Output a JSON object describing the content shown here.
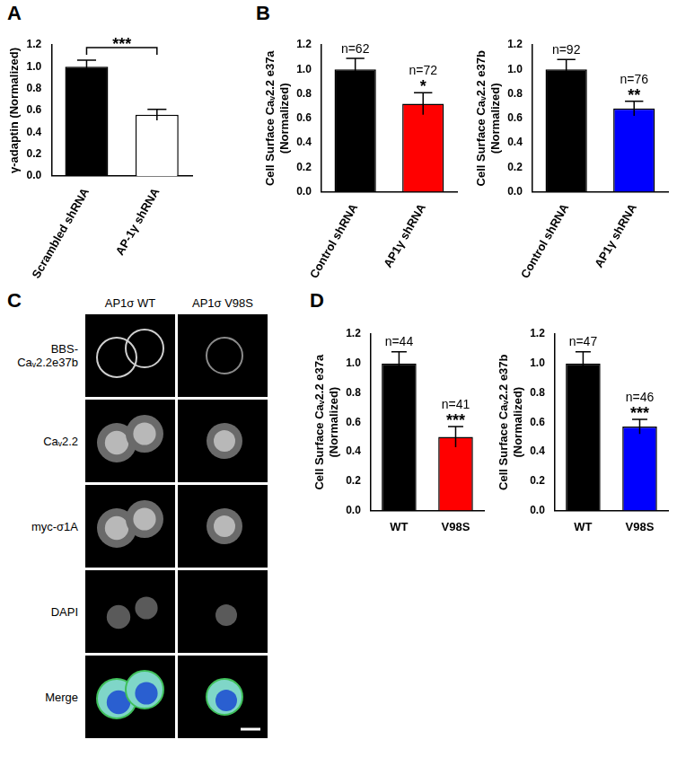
{
  "chart_data": [
    {
      "panel": "A",
      "type": "bar",
      "categories": [
        "Scrambled shRNA",
        "AP-1γ shRNA"
      ],
      "values": [
        1.0,
        0.56
      ],
      "errors": [
        0.06,
        0.05
      ],
      "colors": [
        "#000000",
        "#ffffff"
      ],
      "ylabel": [
        "γ-adaptin (Normalized)"
      ],
      "ylim": [
        0,
        1.2
      ],
      "yticks": [
        {
          "value": 0,
          "label": "0.0"
        },
        0.2,
        0.4,
        0.6,
        0.8,
        {
          "value": 1,
          "label": "1.0"
        },
        1.2
      ],
      "grid": false,
      "annotations": [
        {
          "text": "***",
          "from": "Scrambled shRNA",
          "to": "AP-1γ shRNA"
        }
      ]
    },
    {
      "panel": "B",
      "type": "bar",
      "categories": [
        "Control shRNA",
        "AP1γ shRNA"
      ],
      "values": [
        1.0,
        0.72
      ],
      "errors": [
        0.09,
        0.09
      ],
      "colors": [
        "#000000",
        "#ff0000"
      ],
      "ylabel": [
        "Cell Surface Caᵥ2.2 e37a",
        "(Normalized)"
      ],
      "ylim": [
        0,
        1.2
      ],
      "yticks": [
        {
          "value": 0,
          "label": "0.0"
        },
        0.2,
        0.4,
        0.6,
        0.8,
        {
          "value": 1,
          "label": "1.0"
        },
        1.2
      ],
      "grid": false,
      "annotations": [
        {
          "text": "n=62",
          "category": "Control shRNA"
        },
        {
          "text": "*",
          "category": "AP1γ shRNA"
        },
        {
          "text": "n=72",
          "category": "AP1γ shRNA"
        }
      ]
    },
    {
      "type": "bar",
      "categories": [
        "Control shRNA",
        "AP1γ shRNA"
      ],
      "values": [
        1.0,
        0.68
      ],
      "errors": [
        0.08,
        0.06
      ],
      "colors": [
        "#000000",
        "#0000ff"
      ],
      "ylabel": [
        "Cell Surface Caᵥ2.2 e37b",
        "(Normalized)"
      ],
      "ylim": [
        0,
        1.2
      ],
      "yticks": [
        {
          "value": 0,
          "label": "0.0"
        },
        0.2,
        0.4,
        0.6,
        0.8,
        {
          "value": 1,
          "label": "1.0"
        },
        1.2
      ],
      "grid": false,
      "annotations": [
        {
          "text": "n=92",
          "category": "Control shRNA"
        },
        {
          "text": "**",
          "category": "AP1γ shRNA"
        },
        {
          "text": "n=76",
          "category": "AP1γ shRNA"
        }
      ]
    },
    {
      "panel": "D",
      "type": "bar",
      "categories": [
        "WT",
        "V98S"
      ],
      "values": [
        1.0,
        0.5
      ],
      "errors": [
        0.08,
        0.07
      ],
      "colors": [
        "#000000",
        "#ff0000"
      ],
      "ylabel": [
        "Cell Surface Caᵥ2.2 e37a",
        "(Normalized)"
      ],
      "ylim": [
        0,
        1.2
      ],
      "yticks": [
        {
          "value": 0,
          "label": "0.0"
        },
        0.2,
        0.4,
        0.6,
        0.8,
        {
          "value": 1,
          "label": "1.0"
        },
        1.2
      ],
      "grid": false,
      "annotations": [
        {
          "text": "n=44",
          "category": "WT"
        },
        {
          "text": "***",
          "category": "V98S"
        },
        {
          "text": "n=41",
          "category": "V98S"
        }
      ]
    },
    {
      "type": "bar",
      "categories": [
        "WT",
        "V98S"
      ],
      "values": [
        1.0,
        0.57
      ],
      "errors": [
        0.08,
        0.05
      ],
      "colors": [
        "#000000",
        "#0000ff"
      ],
      "ylabel": [
        "Cell Surface Caᵥ2.2 e37b",
        "(Normalized)"
      ],
      "ylim": [
        0,
        1.2
      ],
      "yticks": [
        {
          "value": 0,
          "label": "0.0"
        },
        0.2,
        0.4,
        0.6,
        0.8,
        {
          "value": 1,
          "label": "1.0"
        },
        1.2
      ],
      "grid": false,
      "annotations": [
        {
          "text": "n=47",
          "category": "WT"
        },
        {
          "text": "***",
          "category": "V98S"
        },
        {
          "text": "n=46",
          "category": "V98S"
        }
      ]
    }
  ],
  "image_panel": {
    "panel": "C",
    "columns": [
      "AP1σ WT",
      "AP1σ V98S"
    ],
    "rows": [
      "BBS-Caᵥ2.2e37b",
      "Caᵥ2.2",
      "myc-σ1A",
      "DAPI",
      "Merge"
    ]
  }
}
